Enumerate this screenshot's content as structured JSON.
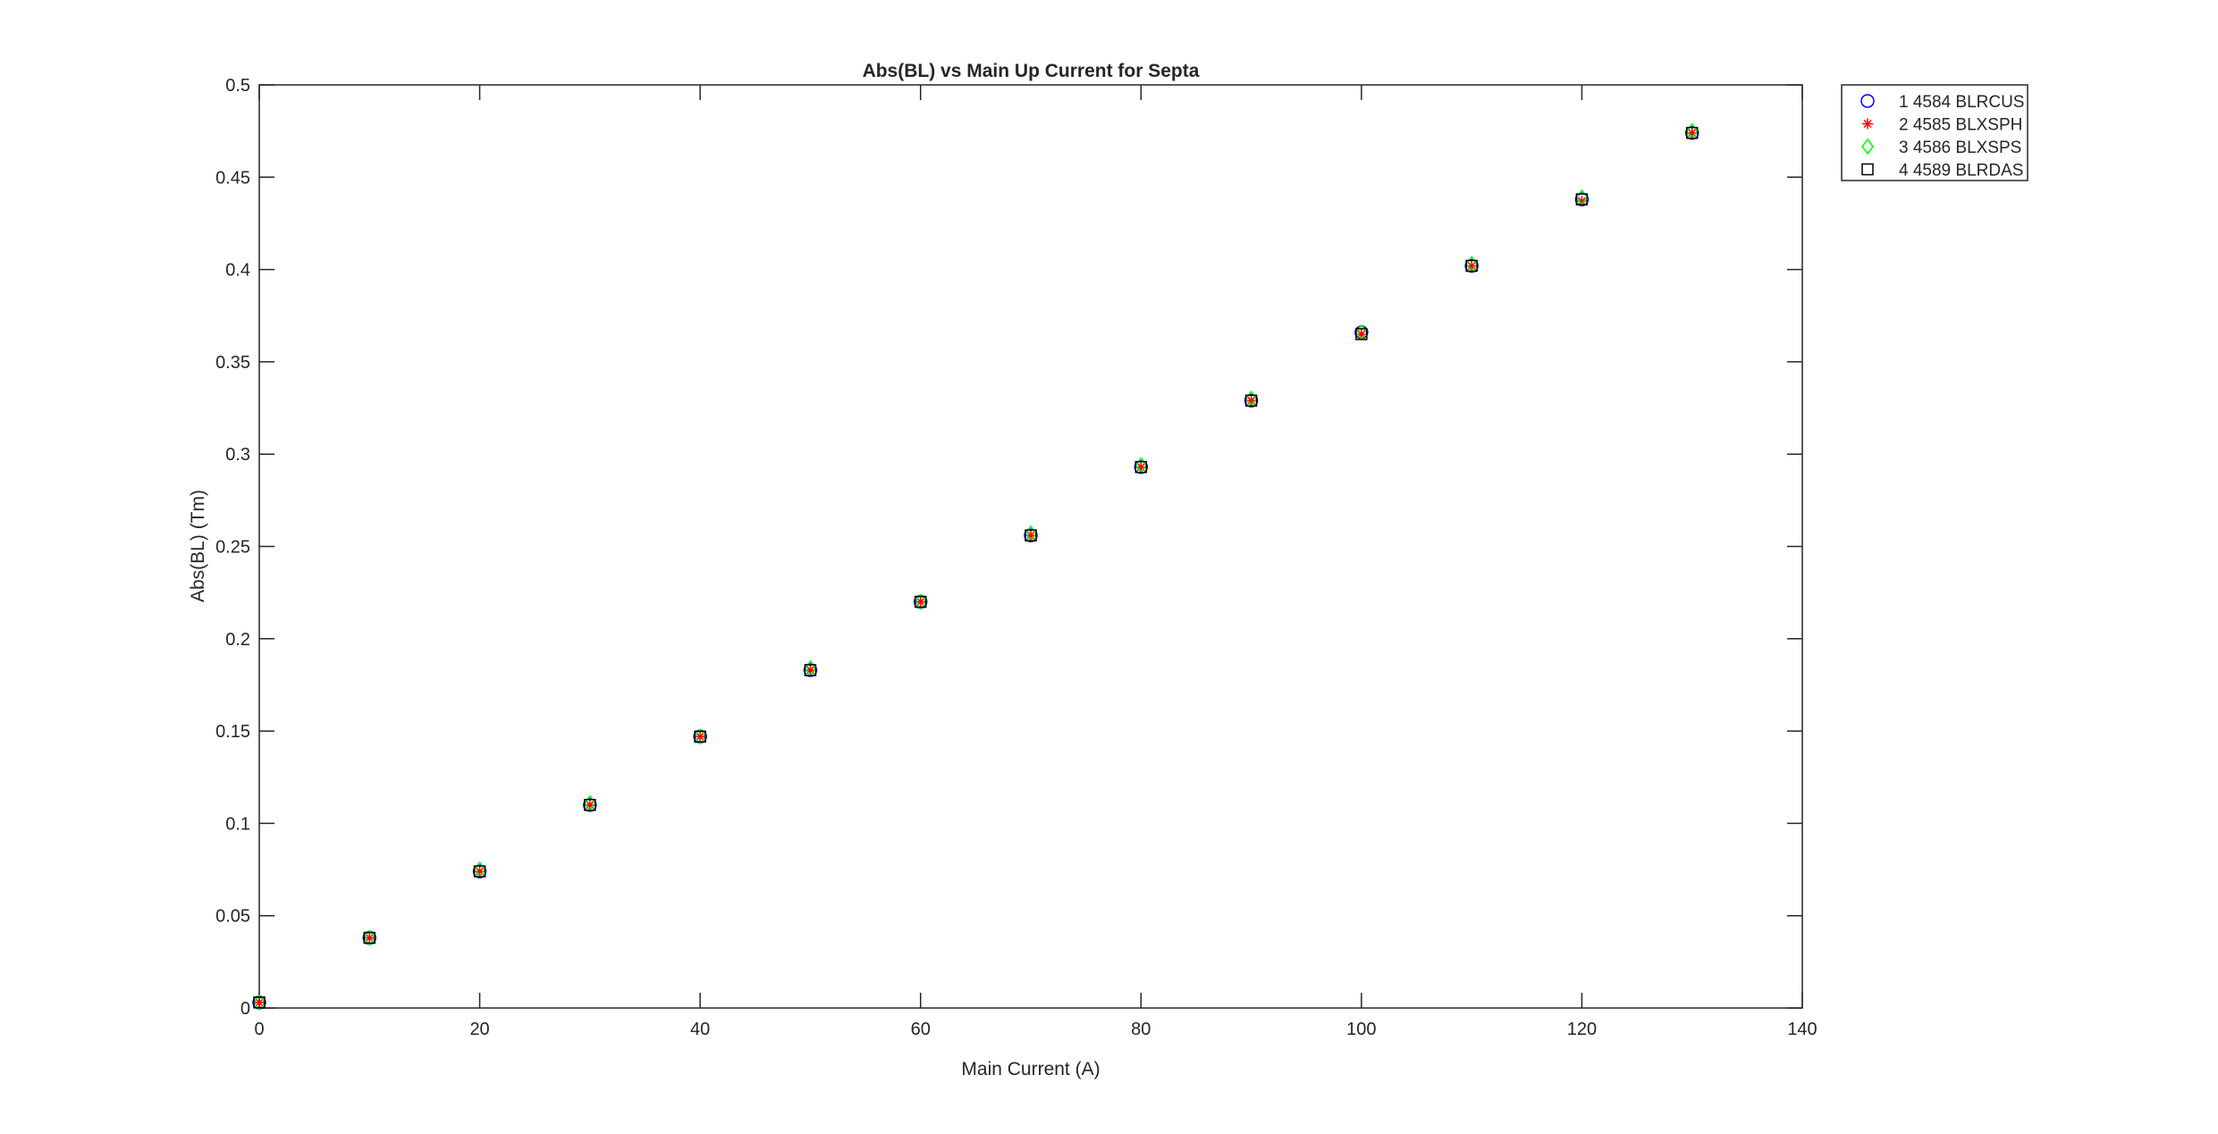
{
  "chart_data": {
    "type": "scatter",
    "title": "Abs(BL) vs Main Up Current for Septa",
    "xlabel": "Main Current (A)",
    "ylabel": "Abs(BL) (Tm)",
    "xlim": [
      0,
      140
    ],
    "ylim": [
      0,
      0.5
    ],
    "xticks": [
      "0",
      "20",
      "40",
      "60",
      "80",
      "100",
      "120",
      "140"
    ],
    "yticks": [
      "0",
      "0.05",
      "0.1",
      "0.15",
      "0.2",
      "0.25",
      "0.3",
      "0.35",
      "0.4",
      "0.45",
      "0.5"
    ],
    "grid": false,
    "legend_position": "outside-top-right",
    "x": [
      0,
      10,
      20,
      30,
      40,
      50,
      60,
      70,
      80,
      90,
      100,
      110,
      120,
      130
    ],
    "series": [
      {
        "name": "1 4584 BLRCUS",
        "marker": "circle",
        "color": "#0000ff",
        "values": [
          0.003,
          0.038,
          0.074,
          0.11,
          0.147,
          0.183,
          0.22,
          0.256,
          0.293,
          0.329,
          0.366,
          0.402,
          0.438,
          0.474
        ]
      },
      {
        "name": "2 4585 BLXSPH",
        "marker": "asterisk",
        "color": "#ff0000",
        "values": [
          0.003,
          0.038,
          0.074,
          0.11,
          0.147,
          0.183,
          0.22,
          0.256,
          0.293,
          0.329,
          0.365,
          0.402,
          0.437,
          0.474
        ]
      },
      {
        "name": "3 4586 BLXSPS",
        "marker": "diamond",
        "color": "#00ff00",
        "values": [
          0.003,
          0.038,
          0.075,
          0.111,
          0.147,
          0.184,
          0.22,
          0.257,
          0.294,
          0.33,
          0.366,
          0.403,
          0.439,
          0.475
        ]
      },
      {
        "name": "4 4589 BLRDAS",
        "marker": "square",
        "color": "#000000",
        "values": [
          0.003,
          0.038,
          0.074,
          0.11,
          0.147,
          0.183,
          0.22,
          0.256,
          0.293,
          0.329,
          0.365,
          0.402,
          0.438,
          0.474
        ]
      }
    ]
  }
}
